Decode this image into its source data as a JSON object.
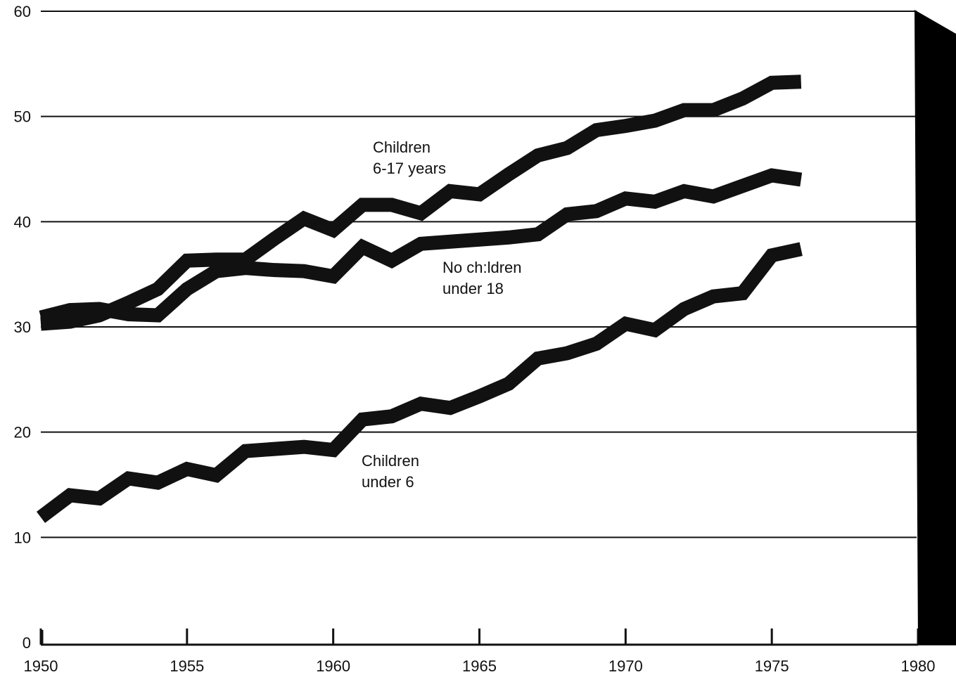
{
  "chart_data": {
    "type": "line",
    "title": "",
    "xlabel": "",
    "ylabel": "",
    "xlim": [
      1950,
      1980
    ],
    "ylim": [
      0,
      60
    ],
    "x_ticks": [
      1950,
      1955,
      1960,
      1965,
      1970,
      1975,
      1980
    ],
    "x_tick_labels": [
      "1950",
      "1955",
      "1960",
      "1965",
      "1970",
      "1975",
      "1980"
    ],
    "y_ticks": [
      0,
      10,
      20,
      30,
      40,
      50,
      60
    ],
    "y_tick_labels": [
      "0",
      "10",
      "20",
      "30",
      "40",
      "50",
      "60"
    ],
    "grid": "horizontal",
    "colors": {
      "line": "#111111",
      "background": "#ffffff",
      "right_band": "#000000"
    },
    "x": [
      1950,
      1951,
      1952,
      1953,
      1954,
      1955,
      1956,
      1957,
      1958,
      1959,
      1960,
      1961,
      1962,
      1963,
      1964,
      1965,
      1966,
      1967,
      1968,
      1969,
      1970,
      1971,
      1972,
      1973,
      1974,
      1975,
      1976
    ],
    "series": [
      {
        "name": "Children 6-17 years",
        "label_lines": [
          "Children",
          "6-17 years"
        ],
        "values": [
          30.3,
          30.5,
          31.1,
          32.3,
          33.6,
          36.3,
          36.4,
          36.4,
          38.4,
          40.3,
          39.2,
          41.6,
          41.6,
          40.8,
          42.9,
          42.6,
          44.5,
          46.3,
          47.0,
          48.7,
          49.1,
          49.6,
          50.6,
          50.6,
          51.7,
          53.2,
          53.3
        ]
      },
      {
        "name": "No children under 18",
        "label_lines": [
          "No ch:ldren",
          "under 18"
        ],
        "values": [
          30.9,
          31.6,
          31.7,
          31.2,
          31.1,
          33.6,
          35.3,
          35.6,
          35.4,
          35.3,
          34.8,
          37.6,
          36.3,
          37.9,
          38.1,
          38.3,
          38.5,
          38.8,
          40.7,
          41.0,
          42.2,
          41.9,
          42.9,
          42.4,
          43.4,
          44.4,
          44.0
        ]
      },
      {
        "name": "Children under 6",
        "label_lines": [
          "Children",
          "under 6"
        ],
        "values": [
          11.9,
          14.0,
          13.7,
          15.6,
          15.2,
          16.5,
          15.9,
          18.2,
          18.4,
          18.6,
          18.3,
          21.2,
          21.5,
          22.7,
          22.3,
          23.4,
          24.6,
          27.0,
          27.5,
          28.4,
          30.3,
          29.7,
          31.7,
          32.9,
          33.2,
          36.8,
          37.4
        ]
      }
    ]
  }
}
